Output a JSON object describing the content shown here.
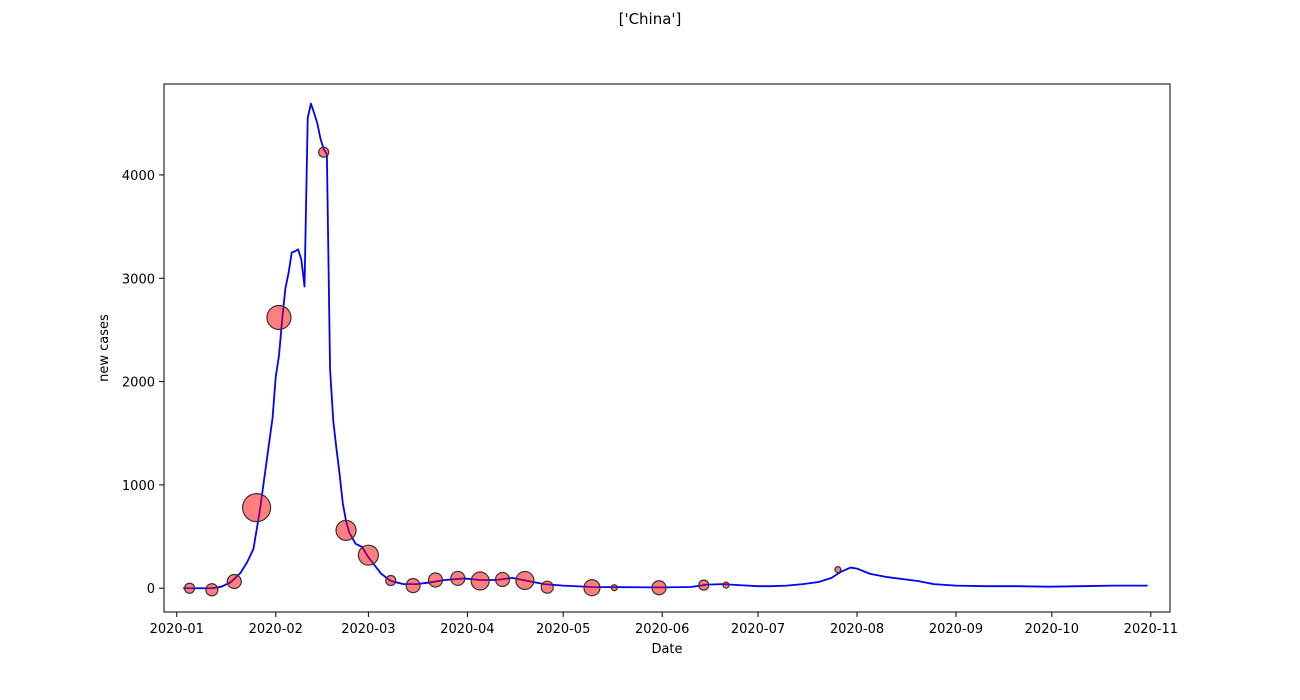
{
  "chart_data": {
    "type": "line",
    "title": "['China']",
    "xlabel": "Date",
    "ylabel": "new cases",
    "grid": false,
    "xlim": [
      "2019-12-28",
      "2020-11-07"
    ],
    "ylim": [
      -230,
      4880
    ],
    "x_ticks": [
      "2020-01",
      "2020-02",
      "2020-03",
      "2020-04",
      "2020-05",
      "2020-06",
      "2020-07",
      "2020-08",
      "2020-09",
      "2020-10",
      "2020-11"
    ],
    "y_ticks": [
      0,
      1000,
      2000,
      3000,
      4000
    ],
    "colors": {
      "line": "#0000ff",
      "marker_fill": "#ff0000",
      "marker_edge": "#333333"
    },
    "series": [
      {
        "type": "line",
        "points": [
          [
            "2020-01-03",
            0
          ],
          [
            "2020-01-08",
            0
          ],
          [
            "2020-01-12",
            0
          ],
          [
            "2020-01-15",
            15
          ],
          [
            "2020-01-18",
            60
          ],
          [
            "2020-01-21",
            150
          ],
          [
            "2020-01-23",
            250
          ],
          [
            "2020-01-25",
            380
          ],
          [
            "2020-01-27",
            750
          ],
          [
            "2020-01-29",
            1200
          ],
          [
            "2020-01-31",
            1650
          ],
          [
            "2020-02-01",
            2050
          ],
          [
            "2020-02-02",
            2250
          ],
          [
            "2020-02-03",
            2600
          ],
          [
            "2020-02-04",
            2900
          ],
          [
            "2020-02-05",
            3050
          ],
          [
            "2020-02-06",
            3250
          ],
          [
            "2020-02-07",
            3260
          ],
          [
            "2020-02-08",
            3280
          ],
          [
            "2020-02-09",
            3180
          ],
          [
            "2020-02-10",
            2920
          ],
          [
            "2020-02-11",
            4550
          ],
          [
            "2020-02-12",
            4690
          ],
          [
            "2020-02-13",
            4600
          ],
          [
            "2020-02-14",
            4500
          ],
          [
            "2020-02-15",
            4350
          ],
          [
            "2020-02-16",
            4250
          ],
          [
            "2020-02-17",
            4200
          ],
          [
            "2020-02-18",
            2120
          ],
          [
            "2020-02-19",
            1620
          ],
          [
            "2020-02-20",
            1350
          ],
          [
            "2020-02-21",
            1100
          ],
          [
            "2020-02-22",
            820
          ],
          [
            "2020-02-23",
            650
          ],
          [
            "2020-02-24",
            540
          ],
          [
            "2020-02-26",
            430
          ],
          [
            "2020-02-28",
            400
          ],
          [
            "2020-03-01",
            300
          ],
          [
            "2020-03-03",
            220
          ],
          [
            "2020-03-05",
            140
          ],
          [
            "2020-03-08",
            70
          ],
          [
            "2020-03-12",
            40
          ],
          [
            "2020-03-16",
            40
          ],
          [
            "2020-03-20",
            55
          ],
          [
            "2020-03-25",
            80
          ],
          [
            "2020-03-31",
            95
          ],
          [
            "2020-04-05",
            80
          ],
          [
            "2020-04-10",
            80
          ],
          [
            "2020-04-15",
            100
          ],
          [
            "2020-04-20",
            70
          ],
          [
            "2020-04-25",
            40
          ],
          [
            "2020-05-01",
            25
          ],
          [
            "2020-05-10",
            12
          ],
          [
            "2020-05-20",
            10
          ],
          [
            "2020-06-01",
            8
          ],
          [
            "2020-06-10",
            12
          ],
          [
            "2020-06-15",
            35
          ],
          [
            "2020-06-20",
            40
          ],
          [
            "2020-06-25",
            30
          ],
          [
            "2020-07-01",
            20
          ],
          [
            "2020-07-05",
            20
          ],
          [
            "2020-07-10",
            25
          ],
          [
            "2020-07-15",
            40
          ],
          [
            "2020-07-20",
            60
          ],
          [
            "2020-07-24",
            100
          ],
          [
            "2020-07-27",
            160
          ],
          [
            "2020-07-30",
            200
          ],
          [
            "2020-08-01",
            190
          ],
          [
            "2020-08-05",
            140
          ],
          [
            "2020-08-10",
            110
          ],
          [
            "2020-08-20",
            70
          ],
          [
            "2020-08-25",
            40
          ],
          [
            "2020-09-01",
            25
          ],
          [
            "2020-09-10",
            20
          ],
          [
            "2020-09-20",
            20
          ],
          [
            "2020-09-30",
            15
          ],
          [
            "2020-10-10",
            20
          ],
          [
            "2020-10-20",
            25
          ],
          [
            "2020-10-31",
            25
          ]
        ]
      },
      {
        "type": "scatter",
        "size_unit": "relative",
        "points": [
          [
            "2020-01-05",
            0,
            5
          ],
          [
            "2020-01-12",
            -15,
            6
          ],
          [
            "2020-01-19",
            65,
            7
          ],
          [
            "2020-01-26",
            780,
            14
          ],
          [
            "2020-02-02",
            2620,
            12
          ],
          [
            "2020-02-16",
            4220,
            5
          ],
          [
            "2020-02-23",
            560,
            10
          ],
          [
            "2020-03-01",
            320,
            10
          ],
          [
            "2020-03-08",
            75,
            5
          ],
          [
            "2020-03-15",
            25,
            7
          ],
          [
            "2020-03-22",
            80,
            7
          ],
          [
            "2020-03-29",
            95,
            7
          ],
          [
            "2020-04-05",
            70,
            9
          ],
          [
            "2020-04-12",
            85,
            7
          ],
          [
            "2020-04-19",
            75,
            9
          ],
          [
            "2020-04-26",
            10,
            6
          ],
          [
            "2020-05-10",
            5,
            8
          ],
          [
            "2020-05-17",
            5,
            3
          ],
          [
            "2020-05-31",
            5,
            7
          ],
          [
            "2020-06-14",
            30,
            5
          ],
          [
            "2020-06-21",
            30,
            3
          ],
          [
            "2020-07-26",
            180,
            3
          ]
        ]
      }
    ]
  }
}
